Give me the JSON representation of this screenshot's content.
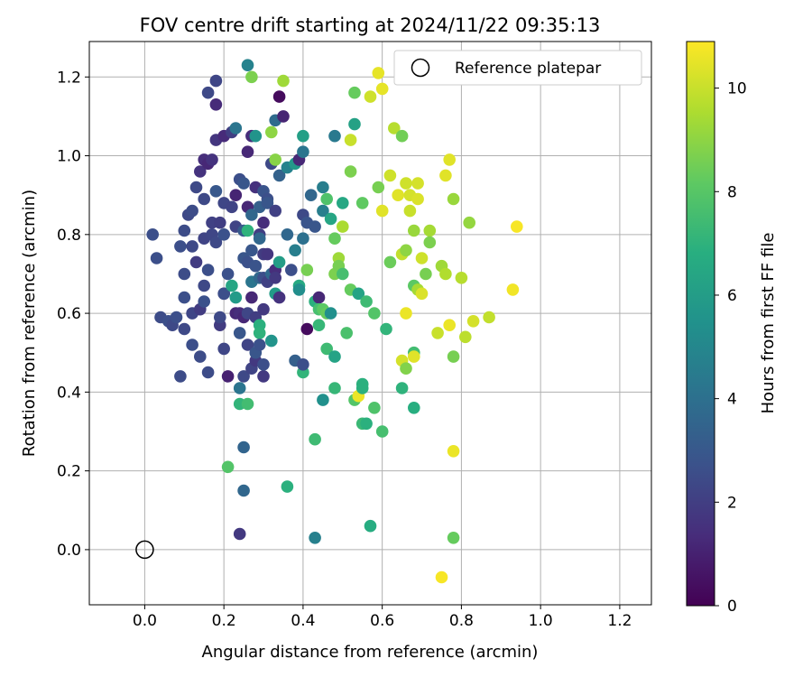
{
  "chart_data": {
    "type": "scatter",
    "title": "FOV centre drift starting at 2024/11/22 09:35:13",
    "xlabel": "Angular distance from reference (arcmin)",
    "ylabel": "Rotation from reference (arcmin)",
    "xlim": [
      -0.14,
      1.28
    ],
    "ylim": [
      -0.14,
      1.29
    ],
    "xticks": [
      0.0,
      0.2,
      0.4,
      0.6,
      0.8,
      1.0,
      1.2
    ],
    "xtick_labels": [
      "0.0",
      "0.2",
      "0.4",
      "0.6",
      "0.8",
      "1.0",
      "1.2"
    ],
    "yticks": [
      0.0,
      0.2,
      0.4,
      0.6,
      0.8,
      1.0,
      1.2
    ],
    "ytick_labels": [
      "0.0",
      "0.2",
      "0.4",
      "0.6",
      "0.8",
      "1.0",
      "1.2"
    ],
    "grid": true,
    "legend": {
      "placement": "top-right",
      "entries": [
        "Reference platepar"
      ]
    },
    "reference_point": {
      "x": 0.0,
      "y": 0.0
    },
    "colorbar": {
      "label": "Hours from first FF file",
      "range": [
        0,
        10.9
      ],
      "ticks": [
        0,
        2,
        4,
        6,
        8,
        10
      ],
      "tick_labels": [
        "0",
        "2",
        "4",
        "6",
        "8",
        "10"
      ],
      "colormap": "viridis"
    },
    "points": [
      [
        0.02,
        0.8,
        2.6
      ],
      [
        0.03,
        0.74,
        2.6
      ],
      [
        0.04,
        0.59,
        2.5
      ],
      [
        0.06,
        0.58,
        2.6
      ],
      [
        0.07,
        0.57,
        2.4
      ],
      [
        0.08,
        0.59,
        2.6
      ],
      [
        0.09,
        0.77,
        2.6
      ],
      [
        0.09,
        0.44,
        2.5
      ],
      [
        0.1,
        0.81,
        2.5
      ],
      [
        0.1,
        0.7,
        2.5
      ],
      [
        0.1,
        0.64,
        2.6
      ],
      [
        0.1,
        0.56,
        2.4
      ],
      [
        0.11,
        0.85,
        2.4
      ],
      [
        0.12,
        0.86,
        2.5
      ],
      [
        0.12,
        0.77,
        2.4
      ],
      [
        0.12,
        0.6,
        2.3
      ],
      [
        0.12,
        0.52,
        2.6
      ],
      [
        0.13,
        0.92,
        2.4
      ],
      [
        0.13,
        0.73,
        1.9
      ],
      [
        0.14,
        0.96,
        1.6
      ],
      [
        0.14,
        0.61,
        1.9
      ],
      [
        0.14,
        0.49,
        2.5
      ],
      [
        0.15,
        0.99,
        1.4
      ],
      [
        0.15,
        0.89,
        2.4
      ],
      [
        0.15,
        0.79,
        2.2
      ],
      [
        0.15,
        0.67,
        2.4
      ],
      [
        0.15,
        0.63,
        2.7
      ],
      [
        0.16,
        0.98,
        1.2
      ],
      [
        0.16,
        0.71,
        2.6
      ],
      [
        0.16,
        1.16,
        2.4
      ],
      [
        0.16,
        0.45,
        2.5
      ],
      [
        0.17,
        0.83,
        2.1
      ],
      [
        0.17,
        0.8,
        2.3
      ],
      [
        0.17,
        0.99,
        1.6
      ],
      [
        0.18,
        1.04,
        1.7
      ],
      [
        0.18,
        0.91,
        3.0
      ],
      [
        0.18,
        0.78,
        2.4
      ],
      [
        0.18,
        1.19,
        2.3
      ],
      [
        0.18,
        1.13,
        1.3
      ],
      [
        0.19,
        0.83,
        2.0
      ],
      [
        0.19,
        0.57,
        1.9
      ],
      [
        0.19,
        0.59,
        2.4
      ],
      [
        0.2,
        1.05,
        1.3
      ],
      [
        0.2,
        0.65,
        1.0
      ],
      [
        0.2,
        0.51,
        2.3
      ],
      [
        0.2,
        0.8,
        2.7
      ],
      [
        0.2,
        0.88,
        2.3
      ],
      [
        0.2,
        0.65,
        2.6
      ],
      [
        0.21,
        0.7,
        2.7
      ],
      [
        0.21,
        0.44,
        1.0
      ],
      [
        0.21,
        0.21,
        7.9
      ],
      [
        0.22,
        1.06,
        2.0
      ],
      [
        0.22,
        0.87,
        2.2
      ],
      [
        0.22,
        0.67,
        6.4
      ],
      [
        0.23,
        0.64,
        5.9
      ],
      [
        0.23,
        0.6,
        1.2
      ],
      [
        0.23,
        1.07,
        4.2
      ],
      [
        0.23,
        0.82,
        2.2
      ],
      [
        0.23,
        0.9,
        1.1
      ],
      [
        0.24,
        0.94,
        2.6
      ],
      [
        0.24,
        0.6,
        1.4
      ],
      [
        0.24,
        0.55,
        2.9
      ],
      [
        0.24,
        0.41,
        4.2
      ],
      [
        0.24,
        0.04,
        1.8
      ],
      [
        0.24,
        0.37,
        7.1
      ],
      [
        0.25,
        0.93,
        2.9
      ],
      [
        0.25,
        0.81,
        3.1
      ],
      [
        0.25,
        0.74,
        2.9
      ],
      [
        0.25,
        0.59,
        1.2
      ],
      [
        0.25,
        0.44,
        2.4
      ],
      [
        0.25,
        0.26,
        3.5
      ],
      [
        0.25,
        0.15,
        3.6
      ],
      [
        0.26,
        0.87,
        1.2
      ],
      [
        0.26,
        0.81,
        7.0
      ],
      [
        0.26,
        0.73,
        2.7
      ],
      [
        0.26,
        0.6,
        2.3
      ],
      [
        0.26,
        0.52,
        2.2
      ],
      [
        0.26,
        0.37,
        7.5
      ],
      [
        0.26,
        1.01,
        1.2
      ],
      [
        0.26,
        1.23,
        4.8
      ],
      [
        0.27,
        1.05,
        1.4
      ],
      [
        0.27,
        0.85,
        3.6
      ],
      [
        0.27,
        0.76,
        2.9
      ],
      [
        0.27,
        0.68,
        4.2
      ],
      [
        0.27,
        0.64,
        1.2
      ],
      [
        0.27,
        0.46,
        2.2
      ],
      [
        0.27,
        1.2,
        8.7
      ],
      [
        0.28,
        1.05,
        5.6
      ],
      [
        0.28,
        0.92,
        1.5
      ],
      [
        0.28,
        0.72,
        2.8
      ],
      [
        0.28,
        0.59,
        2.0
      ],
      [
        0.28,
        0.48,
        1.8
      ],
      [
        0.28,
        0.5,
        2.9
      ],
      [
        0.29,
        0.87,
        3.3
      ],
      [
        0.29,
        0.8,
        2.0
      ],
      [
        0.29,
        0.79,
        3.6
      ],
      [
        0.29,
        0.69,
        3.6
      ],
      [
        0.29,
        0.57,
        6.9
      ],
      [
        0.29,
        0.55,
        7.0
      ],
      [
        0.29,
        0.52,
        2.7
      ],
      [
        0.3,
        0.91,
        2.8
      ],
      [
        0.3,
        0.83,
        1.4
      ],
      [
        0.3,
        0.75,
        1.9
      ],
      [
        0.3,
        0.69,
        2.6
      ],
      [
        0.3,
        0.61,
        1.8
      ],
      [
        0.3,
        0.44,
        1.8
      ],
      [
        0.3,
        0.47,
        2.6
      ],
      [
        0.31,
        0.89,
        2.6
      ],
      [
        0.31,
        0.75,
        1.7
      ],
      [
        0.31,
        0.68,
        2.1
      ],
      [
        0.31,
        0.88,
        2.9
      ],
      [
        0.32,
        1.06,
        9.0
      ],
      [
        0.32,
        0.98,
        2.4
      ],
      [
        0.32,
        0.7,
        3.7
      ],
      [
        0.32,
        0.53,
        5.6
      ],
      [
        0.33,
        0.86,
        2.1
      ],
      [
        0.33,
        0.65,
        5.9
      ],
      [
        0.33,
        0.71,
        1.4
      ],
      [
        0.33,
        0.69,
        1.8
      ],
      [
        0.33,
        0.99,
        8.9
      ],
      [
        0.33,
        1.09,
        3.8
      ],
      [
        0.34,
        0.95,
        3.4
      ],
      [
        0.34,
        0.73,
        6.0
      ],
      [
        0.34,
        0.64,
        1.6
      ],
      [
        0.34,
        1.15,
        0.3
      ],
      [
        0.35,
        1.1,
        1.1
      ],
      [
        0.35,
        1.19,
        9.3
      ],
      [
        0.36,
        0.97,
        4.8
      ],
      [
        0.36,
        0.8,
        3.6
      ],
      [
        0.36,
        0.16,
        6.9
      ],
      [
        0.37,
        0.71,
        2.6
      ],
      [
        0.38,
        0.76,
        4.6
      ],
      [
        0.38,
        0.98,
        5.8
      ],
      [
        0.38,
        0.48,
        3.3
      ],
      [
        0.39,
        0.67,
        6.6
      ],
      [
        0.39,
        0.99,
        1.2
      ],
      [
        0.39,
        0.66,
        5.3
      ],
      [
        0.4,
        0.85,
        2.4
      ],
      [
        0.4,
        0.79,
        4.0
      ],
      [
        0.4,
        0.45,
        7.1
      ],
      [
        0.4,
        0.47,
        2.6
      ],
      [
        0.4,
        1.01,
        4.2
      ],
      [
        0.4,
        1.05,
        6.1
      ],
      [
        0.41,
        0.71,
        8.6
      ],
      [
        0.41,
        0.56,
        0.3
      ],
      [
        0.41,
        0.83,
        2.8
      ],
      [
        0.42,
        0.9,
        3.6
      ],
      [
        0.43,
        0.82,
        2.9
      ],
      [
        0.43,
        0.63,
        6.9
      ],
      [
        0.43,
        0.28,
        7.4
      ],
      [
        0.43,
        0.03,
        4.7
      ],
      [
        0.44,
        0.64,
        1.2
      ],
      [
        0.44,
        0.57,
        7.2
      ],
      [
        0.44,
        0.61,
        7.6
      ],
      [
        0.45,
        0.86,
        4.6
      ],
      [
        0.45,
        0.61,
        8.1
      ],
      [
        0.45,
        0.92,
        4.6
      ],
      [
        0.45,
        0.38,
        5.4
      ],
      [
        0.46,
        0.6,
        8.3
      ],
      [
        0.46,
        0.89,
        7.8
      ],
      [
        0.46,
        0.51,
        7.4
      ],
      [
        0.47,
        0.6,
        5.4
      ],
      [
        0.47,
        0.84,
        6.4
      ],
      [
        0.48,
        0.79,
        8.3
      ],
      [
        0.48,
        0.7,
        8.7
      ],
      [
        0.48,
        0.49,
        6.3
      ],
      [
        0.48,
        0.41,
        7.2
      ],
      [
        0.48,
        1.05,
        4.4
      ],
      [
        0.49,
        0.74,
        9.3
      ],
      [
        0.49,
        0.72,
        8.6
      ],
      [
        0.5,
        0.7,
        7.6
      ],
      [
        0.5,
        0.82,
        9.5
      ],
      [
        0.5,
        0.88,
        6.5
      ],
      [
        0.51,
        0.55,
        7.7
      ],
      [
        0.52,
        0.66,
        8.3
      ],
      [
        0.52,
        1.04,
        10.0
      ],
      [
        0.52,
        0.96,
        8.7
      ],
      [
        0.53,
        1.08,
        6.2
      ],
      [
        0.53,
        1.16,
        8.3
      ],
      [
        0.53,
        0.38,
        7.9
      ],
      [
        0.54,
        0.39,
        10.6
      ],
      [
        0.54,
        0.65,
        6.3
      ],
      [
        0.55,
        0.32,
        7.3
      ],
      [
        0.55,
        0.41,
        6.9
      ],
      [
        0.55,
        0.42,
        6.9
      ],
      [
        0.55,
        0.88,
        8.2
      ],
      [
        0.56,
        0.32,
        6.9
      ],
      [
        0.56,
        0.63,
        7.4
      ],
      [
        0.57,
        0.06,
        6.7
      ],
      [
        0.57,
        1.15,
        10.1
      ],
      [
        0.58,
        0.36,
        7.8
      ],
      [
        0.58,
        0.6,
        7.9
      ],
      [
        0.59,
        1.21,
        10.5
      ],
      [
        0.59,
        0.92,
        8.6
      ],
      [
        0.6,
        1.17,
        10.5
      ],
      [
        0.6,
        0.3,
        7.6
      ],
      [
        0.6,
        0.86,
        10.4
      ],
      [
        0.61,
        0.56,
        7.1
      ],
      [
        0.62,
        0.95,
        10.1
      ],
      [
        0.62,
        0.73,
        8.4
      ],
      [
        0.63,
        1.07,
        9.7
      ],
      [
        0.64,
        0.9,
        10.4
      ],
      [
        0.65,
        0.48,
        10.2
      ],
      [
        0.65,
        0.75,
        9.9
      ],
      [
        0.65,
        0.41,
        7.0
      ],
      [
        0.65,
        1.05,
        8.5
      ],
      [
        0.66,
        0.6,
        10.6
      ],
      [
        0.66,
        0.93,
        10.1
      ],
      [
        0.66,
        0.46,
        8.8
      ],
      [
        0.66,
        0.76,
        9.0
      ],
      [
        0.67,
        0.9,
        10.2
      ],
      [
        0.67,
        0.86,
        10.0
      ],
      [
        0.68,
        0.5,
        7.5
      ],
      [
        0.68,
        0.36,
        6.8
      ],
      [
        0.68,
        0.67,
        8.1
      ],
      [
        0.68,
        0.49,
        10.4
      ],
      [
        0.68,
        0.81,
        9.2
      ],
      [
        0.69,
        0.93,
        10.2
      ],
      [
        0.69,
        0.89,
        10.3
      ],
      [
        0.69,
        0.66,
        9.4
      ],
      [
        0.7,
        0.65,
        10.3
      ],
      [
        0.7,
        0.74,
        10.1
      ],
      [
        0.71,
        0.7,
        8.6
      ],
      [
        0.72,
        0.81,
        9.4
      ],
      [
        0.72,
        0.78,
        8.7
      ],
      [
        0.74,
        0.55,
        10.0
      ],
      [
        0.75,
        -0.07,
        10.8
      ],
      [
        0.75,
        0.72,
        9.3
      ],
      [
        0.76,
        0.95,
        10.4
      ],
      [
        0.76,
        0.7,
        9.6
      ],
      [
        0.77,
        0.57,
        10.6
      ],
      [
        0.77,
        0.99,
        10.4
      ],
      [
        0.78,
        0.03,
        8.3
      ],
      [
        0.78,
        0.49,
        8.6
      ],
      [
        0.78,
        0.25,
        10.6
      ],
      [
        0.78,
        0.89,
        9.2
      ],
      [
        0.8,
        0.69,
        9.7
      ],
      [
        0.81,
        0.54,
        9.8
      ],
      [
        0.82,
        0.83,
        9.1
      ],
      [
        0.83,
        0.58,
        10.2
      ],
      [
        0.87,
        0.59,
        9.9
      ],
      [
        0.93,
        0.66,
        10.7
      ],
      [
        0.94,
        0.82,
        10.8
      ]
    ]
  }
}
